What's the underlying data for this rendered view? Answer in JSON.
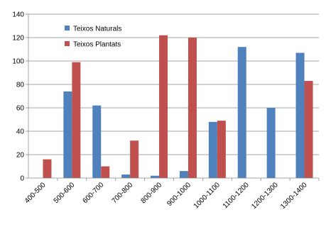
{
  "chart_data": {
    "type": "bar",
    "categories": [
      "400-500",
      "500-600",
      "600-700",
      "700-800",
      "800-900",
      "900-1000",
      "1000-1100",
      "1100-1200",
      "1200-1300",
      "1300-1400"
    ],
    "series": [
      {
        "name": "Teixos Naturals",
        "color": "#4F81BD",
        "values": [
          0,
          74,
          62,
          3,
          2,
          6,
          48,
          112,
          60,
          107
        ]
      },
      {
        "name": "Teixos Plantats",
        "color": "#C0504D",
        "values": [
          16,
          99,
          10,
          32,
          122,
          120,
          49,
          0,
          0,
          83
        ]
      }
    ],
    "ylim": [
      0,
      140
    ],
    "yticks": [
      0,
      20,
      40,
      60,
      80,
      100,
      120,
      140
    ],
    "grid": true,
    "legend_position": "top-left",
    "title": "",
    "xlabel": "",
    "ylabel": ""
  }
}
